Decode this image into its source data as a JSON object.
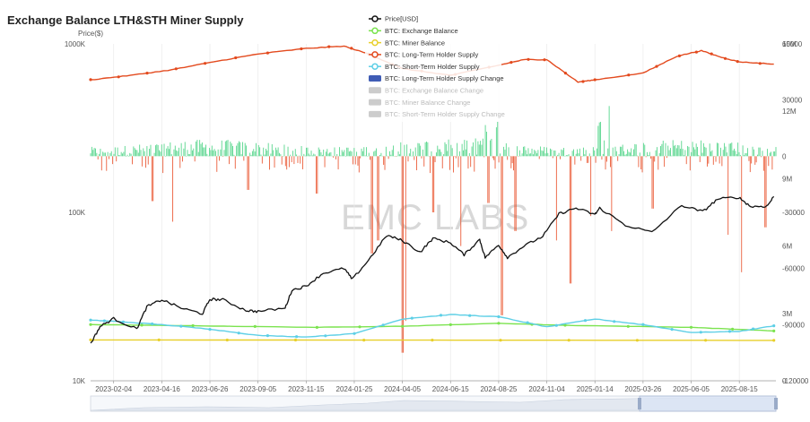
{
  "chart_data": {
    "type": "line",
    "title": "Exchange Balance LTH&STH Miner Supply",
    "left_axis": {
      "label": "Price($)",
      "scale": "log",
      "ticks": [
        "10K",
        "100K",
        "1000K"
      ],
      "range": [
        10000,
        1000000
      ]
    },
    "right_axis_supply": {
      "ticks": [
        "0",
        "3M",
        "6M",
        "9M",
        "12M",
        "15M"
      ],
      "range": [
        0,
        15000000
      ]
    },
    "right_axis_change": {
      "ticks": [
        "-120000",
        "-90000",
        "-60000",
        "-30000",
        "0",
        "30000",
        "60000"
      ],
      "range": [
        -120000,
        60000
      ]
    },
    "x_ticks": [
      "2023-02-04",
      "2023-04-16",
      "2023-06-26",
      "2023-09-05",
      "2023-11-15",
      "2024-01-25",
      "2024-04-05",
      "2024-06-15",
      "2024-08-25",
      "2024-11-04",
      "2025-01-14",
      "2025-03-26",
      "2025-06-05",
      "2025-08-15"
    ],
    "x_range": [
      "2023-01-01",
      "2025-10-08"
    ],
    "grid": "vertical lines only",
    "legend_placement": "top-center",
    "legend": [
      {
        "name": "Price[USD]",
        "color": "#111111",
        "style": "line",
        "visible": true
      },
      {
        "name": "BTC: Exchange Balance",
        "color": "#7be34f",
        "style": "line",
        "visible": true
      },
      {
        "name": "BTC: Miner Balance",
        "color": "#e8cf2a",
        "style": "line",
        "visible": true
      },
      {
        "name": "BTC: Long-Term Holder Supply",
        "color": "#e34a1e",
        "style": "line",
        "visible": true
      },
      {
        "name": "BTC: Short-Term Holder Supply",
        "color": "#5ecfe6",
        "style": "line",
        "visible": true
      },
      {
        "name": "BTC: Long-Term Holder Supply Change",
        "color": "#3f5cb5",
        "style": "bar",
        "visible": true
      },
      {
        "name": "BTC: Exchange Balance Change",
        "color": "#cccccc",
        "style": "bar",
        "visible": false
      },
      {
        "name": "BTC: Miner Balance Change",
        "color": "#cccccc",
        "style": "bar",
        "visible": false
      },
      {
        "name": "BTC: Short-Term Holder Supply Change",
        "color": "#cccccc",
        "style": "bar",
        "visible": false
      }
    ],
    "colors": {
      "positive_change": "#2ecc71",
      "negative_change": "#e8431a"
    },
    "watermark": "EMC LABS",
    "series": {
      "price": [
        [
          "2023-01-01",
          16600
        ],
        [
          "2023-01-15",
          21000
        ],
        [
          "2023-02-04",
          23400
        ],
        [
          "2023-03-10",
          20300
        ],
        [
          "2023-03-25",
          27500
        ],
        [
          "2023-04-16",
          30300
        ],
        [
          "2023-05-15",
          27000
        ],
        [
          "2023-06-15",
          25000
        ],
        [
          "2023-06-26",
          30500
        ],
        [
          "2023-07-15",
          30300
        ],
        [
          "2023-08-18",
          26200
        ],
        [
          "2023-09-05",
          25800
        ],
        [
          "2023-10-15",
          27000
        ],
        [
          "2023-10-25",
          34500
        ],
        [
          "2023-11-15",
          36500
        ],
        [
          "2023-12-10",
          43500
        ],
        [
          "2024-01-10",
          46500
        ],
        [
          "2024-01-22",
          40000
        ],
        [
          "2024-02-15",
          52000
        ],
        [
          "2024-03-13",
          73000
        ],
        [
          "2024-04-05",
          68000
        ],
        [
          "2024-05-01",
          58000
        ],
        [
          "2024-05-20",
          70000
        ],
        [
          "2024-06-15",
          66000
        ],
        [
          "2024-07-05",
          56000
        ],
        [
          "2024-07-28",
          69000
        ],
        [
          "2024-08-05",
          54000
        ],
        [
          "2024-08-25",
          64000
        ],
        [
          "2024-09-07",
          54000
        ],
        [
          "2024-10-01",
          63000
        ],
        [
          "2024-10-29",
          72000
        ],
        [
          "2024-11-22",
          98000
        ],
        [
          "2024-12-17",
          106000
        ],
        [
          "2025-01-14",
          97000
        ],
        [
          "2025-01-21",
          106000
        ],
        [
          "2025-02-28",
          84000
        ],
        [
          "2025-04-08",
          76000
        ],
        [
          "2025-05-22",
          110000
        ],
        [
          "2025-06-22",
          101000
        ],
        [
          "2025-07-14",
          120000
        ],
        [
          "2025-08-14",
          123000
        ],
        [
          "2025-09-01",
          108000
        ],
        [
          "2025-09-25",
          109000
        ],
        [
          "2025-10-05",
          124000
        ]
      ],
      "lth_supply": [
        [
          "2023-01-01",
          13400000
        ],
        [
          "2023-03-01",
          13600000
        ],
        [
          "2023-05-01",
          13850000
        ],
        [
          "2023-07-01",
          14200000
        ],
        [
          "2023-09-05",
          14550000
        ],
        [
          "2023-11-15",
          14800000
        ],
        [
          "2024-01-10",
          14900000
        ],
        [
          "2024-02-15",
          14550000
        ],
        [
          "2024-04-05",
          13900000
        ],
        [
          "2024-06-15",
          13600000
        ],
        [
          "2024-08-25",
          14050000
        ],
        [
          "2024-10-01",
          14300000
        ],
        [
          "2024-11-04",
          14300000
        ],
        [
          "2024-12-20",
          13300000
        ],
        [
          "2025-01-14",
          13400000
        ],
        [
          "2025-03-26",
          13700000
        ],
        [
          "2025-05-15",
          14450000
        ],
        [
          "2025-06-20",
          14700000
        ],
        [
          "2025-07-20",
          14400000
        ],
        [
          "2025-08-15",
          14200000
        ],
        [
          "2025-10-05",
          14100000
        ]
      ],
      "exchange_balance": [
        [
          "2023-01-01",
          2500000
        ],
        [
          "2023-06-01",
          2450000
        ],
        [
          "2023-12-01",
          2380000
        ],
        [
          "2024-04-05",
          2430000
        ],
        [
          "2024-08-25",
          2560000
        ],
        [
          "2024-12-01",
          2470000
        ],
        [
          "2025-06-05",
          2380000
        ],
        [
          "2025-10-05",
          2220000
        ]
      ],
      "miner_balance": [
        [
          "2023-01-01",
          1820000
        ],
        [
          "2025-10-05",
          1800000
        ]
      ],
      "sth_supply": [
        [
          "2023-01-01",
          2700000
        ],
        [
          "2023-02-04",
          2650000
        ],
        [
          "2023-04-16",
          2500000
        ],
        [
          "2023-06-26",
          2300000
        ],
        [
          "2023-09-05",
          2020000
        ],
        [
          "2023-11-15",
          1950000
        ],
        [
          "2024-01-25",
          2100000
        ],
        [
          "2024-04-05",
          2750000
        ],
        [
          "2024-06-15",
          2950000
        ],
        [
          "2024-08-25",
          2850000
        ],
        [
          "2024-11-04",
          2400000
        ],
        [
          "2025-01-14",
          2750000
        ],
        [
          "2025-03-26",
          2500000
        ],
        [
          "2025-06-05",
          2150000
        ],
        [
          "2025-08-15",
          2200000
        ],
        [
          "2025-10-05",
          2450000
        ]
      ]
    }
  }
}
